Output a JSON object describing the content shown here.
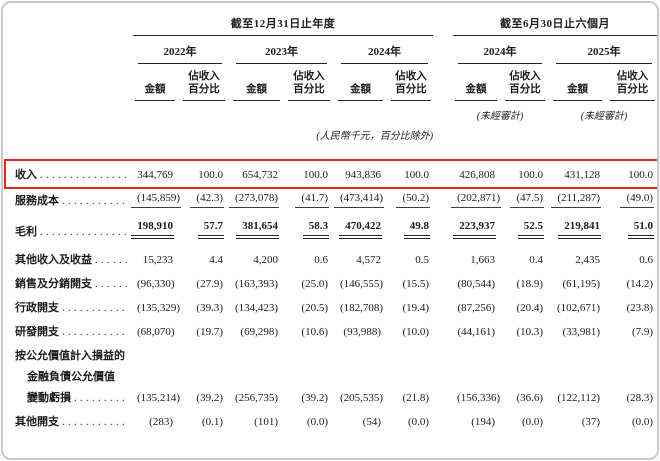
{
  "table": {
    "period_headers": [
      "截至12月31日止年度",
      "截至6月30日止六個月"
    ],
    "year_headers": [
      "2022年",
      "2023年",
      "2024年",
      "2024年",
      "2025年"
    ],
    "col_amount": "金額",
    "col_percent_line1": "佔收入",
    "col_percent_line2": "百分比",
    "unaudited_note": "(未經審計)",
    "currency_note": "(人民幣千元，百分比除外)",
    "highlight_color": "#e8251d",
    "rows": [
      {
        "labels": [
          "收入"
        ],
        "style": "plain",
        "highlight": true,
        "values": [
          "344,769",
          "100.0",
          "654,732",
          "100.0",
          "943,836",
          "100.0",
          "426,808",
          "100.0",
          "431,128",
          "100.0"
        ]
      },
      {
        "labels": [
          "服務成本"
        ],
        "style": "underline",
        "values": [
          "(145,859)",
          "(42.3)",
          "(273,078)",
          "(41.7)",
          "(473,414)",
          "(50.2)",
          "(202,871)",
          "(47.5)",
          "(211,287)",
          "(49.0)"
        ]
      },
      {
        "labels": [
          "毛利"
        ],
        "style": "total",
        "values": [
          "198,910",
          "57.7",
          "381,654",
          "58.3",
          "470,422",
          "49.8",
          "223,937",
          "52.5",
          "219,841",
          "51.0"
        ]
      },
      {
        "labels": [
          "其他收入及收益"
        ],
        "style": "plain",
        "values": [
          "15,233",
          "4.4",
          "4,200",
          "0.6",
          "4,572",
          "0.5",
          "1,663",
          "0.4",
          "2,435",
          "0.6"
        ]
      },
      {
        "labels": [
          "銷售及分銷開支"
        ],
        "style": "plain",
        "values": [
          "(96,330)",
          "(27.9)",
          "(163,393)",
          "(25.0)",
          "(146,555)",
          "(15.5)",
          "(80,544)",
          "(18.9)",
          "(61,195)",
          "(14.2)"
        ]
      },
      {
        "labels": [
          "行政開支"
        ],
        "style": "plain",
        "values": [
          "(135,329)",
          "(39.3)",
          "(134,423)",
          "(20.5)",
          "(182,708)",
          "(19.4)",
          "(87,256)",
          "(20.4)",
          "(102,671)",
          "(23.8)"
        ]
      },
      {
        "labels": [
          "研發開支"
        ],
        "style": "plain",
        "values": [
          "(68,070)",
          "(19.7)",
          "(69,298)",
          "(10.6)",
          "(93,988)",
          "(10.0)",
          "(44,161)",
          "(10.3)",
          "(33,981)",
          "(7.9)"
        ]
      },
      {
        "labels": [
          "按公允價值計入損益的",
          "金融負債公允價值",
          "變動虧損"
        ],
        "style": "plain",
        "values": [
          "(135,214)",
          "(39.2)",
          "(256,735)",
          "(39.2)",
          "(205,535)",
          "(21.8)",
          "(156,336)",
          "(36.6)",
          "(122,112)",
          "(28.3)"
        ]
      },
      {
        "labels": [
          "其他開支"
        ],
        "style": "plain",
        "values": [
          "(283)",
          "(0.1)",
          "(101)",
          "(0.0)",
          "(54)",
          "(0.0)",
          "(194)",
          "(0.0)",
          "(37)",
          "(0.0)"
        ]
      }
    ]
  }
}
